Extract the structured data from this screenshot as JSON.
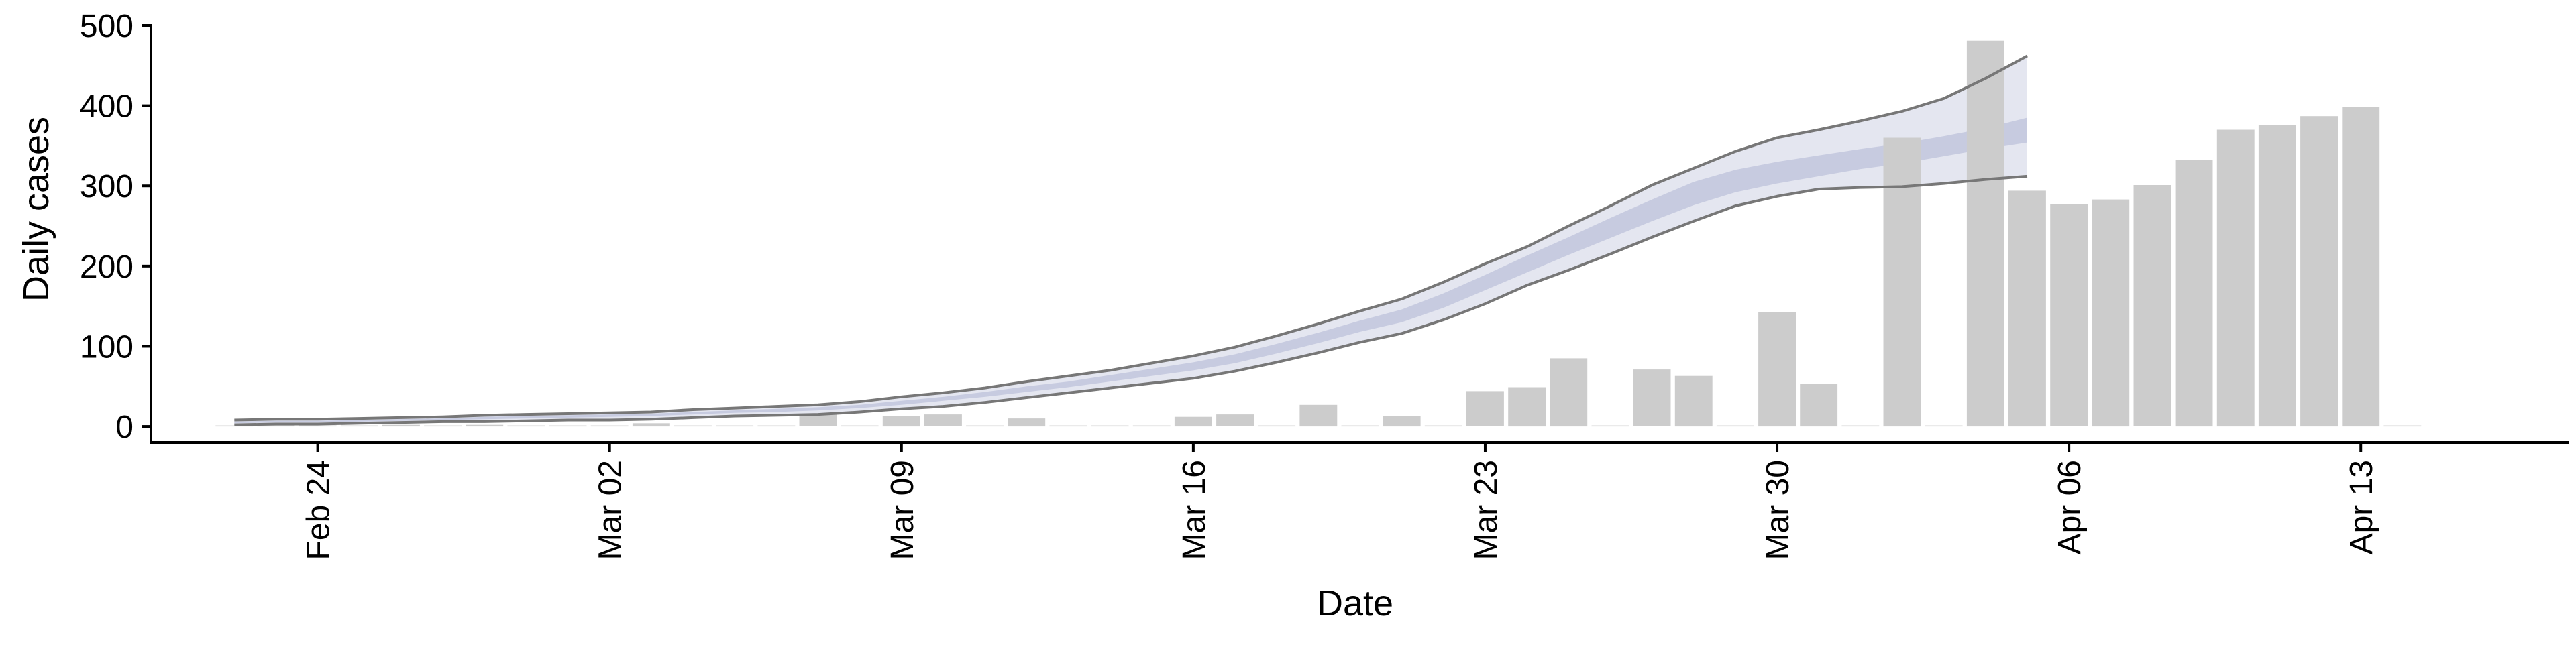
{
  "chart_data": {
    "type": "bar",
    "xlabel": "Date",
    "ylabel": "Daily cases",
    "ylim": [
      -20,
      500
    ],
    "yticks": [
      0,
      100,
      200,
      300,
      400,
      500
    ],
    "x_tick_labels": [
      {
        "date": "2020-02-24",
        "label": "Feb 24"
      },
      {
        "date": "2020-03-02",
        "label": "Mar 02"
      },
      {
        "date": "2020-03-09",
        "label": "Mar 09"
      },
      {
        "date": "2020-03-16",
        "label": "Mar 16"
      },
      {
        "date": "2020-03-23",
        "label": "Mar 23"
      },
      {
        "date": "2020-03-30",
        "label": "Mar 30"
      },
      {
        "date": "2020-04-06",
        "label": "Apr 06"
      },
      {
        "date": "2020-04-13",
        "label": "Apr 13"
      }
    ],
    "xlim": [
      "2020-02-20",
      "2020-04-18"
    ],
    "grid": false,
    "colors": {
      "bars": "#cccccc",
      "ribbon_outer": "#e4e6f0",
      "ribbon_inner": "#c7cbe0",
      "interval_line": "#777777"
    },
    "observed_cases": {
      "dates": [
        "2020-02-22",
        "2020-02-23",
        "2020-02-24",
        "2020-02-25",
        "2020-02-26",
        "2020-02-27",
        "2020-02-28",
        "2020-02-29",
        "2020-03-01",
        "2020-03-02",
        "2020-03-03",
        "2020-03-04",
        "2020-03-05",
        "2020-03-06",
        "2020-03-07",
        "2020-03-08",
        "2020-03-09",
        "2020-03-10",
        "2020-03-11",
        "2020-03-12",
        "2020-03-13",
        "2020-03-14",
        "2020-03-15",
        "2020-03-16",
        "2020-03-17",
        "2020-03-18",
        "2020-03-19",
        "2020-03-20",
        "2020-03-21",
        "2020-03-22",
        "2020-03-23",
        "2020-03-24",
        "2020-03-25",
        "2020-03-26",
        "2020-03-27",
        "2020-03-28",
        "2020-03-29",
        "2020-03-30",
        "2020-03-31",
        "2020-04-01",
        "2020-04-02",
        "2020-04-03",
        "2020-04-04",
        "2020-04-05",
        "2020-04-06",
        "2020-04-07",
        "2020-04-08",
        "2020-04-09",
        "2020-04-10",
        "2020-04-11",
        "2020-04-12",
        "2020-04-13",
        "2020-04-14"
      ],
      "values": [
        1,
        0,
        0,
        0,
        2,
        0,
        2,
        0,
        0,
        0,
        4,
        0,
        1,
        0,
        16,
        0,
        13,
        15,
        0,
        10,
        0,
        0,
        1,
        12,
        15,
        0,
        27,
        0,
        13,
        0,
        44,
        49,
        85,
        0,
        71,
        63,
        0,
        143,
        53,
        0,
        360,
        0,
        481,
        294,
        277,
        283,
        301,
        332,
        370,
        376,
        387,
        398,
        0
      ]
    },
    "estimate": {
      "dates": [
        "2020-02-22",
        "2020-02-23",
        "2020-02-24",
        "2020-02-25",
        "2020-02-26",
        "2020-02-27",
        "2020-02-28",
        "2020-02-29",
        "2020-03-01",
        "2020-03-02",
        "2020-03-03",
        "2020-03-04",
        "2020-03-05",
        "2020-03-06",
        "2020-03-07",
        "2020-03-08",
        "2020-03-09",
        "2020-03-10",
        "2020-03-11",
        "2020-03-12",
        "2020-03-13",
        "2020-03-14",
        "2020-03-15",
        "2020-03-16",
        "2020-03-17",
        "2020-03-18",
        "2020-03-19",
        "2020-03-20",
        "2020-03-21",
        "2020-03-22",
        "2020-03-23",
        "2020-03-24",
        "2020-03-25",
        "2020-03-26",
        "2020-03-27",
        "2020-03-28",
        "2020-03-29",
        "2020-03-30",
        "2020-03-31",
        "2020-04-01",
        "2020-04-02",
        "2020-04-03",
        "2020-04-04",
        "2020-04-05"
      ],
      "lower90": [
        2,
        3,
        3,
        4,
        5,
        6,
        6,
        7,
        8,
        8,
        9,
        11,
        13,
        14,
        15,
        18,
        22,
        25,
        30,
        36,
        42,
        48,
        54,
        60,
        69,
        80,
        92,
        105,
        116,
        133,
        153,
        176,
        195,
        215,
        236,
        256,
        275,
        287,
        296,
        298,
        299,
        303,
        308,
        312
      ],
      "lower50": [
        4,
        5,
        5,
        6,
        7,
        8,
        9,
        10,
        11,
        12,
        13,
        15,
        17,
        18,
        20,
        23,
        27,
        32,
        37,
        43,
        49,
        56,
        63,
        70,
        79,
        91,
        104,
        118,
        130,
        148,
        170,
        192,
        214,
        235,
        256,
        276,
        292,
        303,
        312,
        321,
        328,
        337,
        346,
        354
      ],
      "upper50": [
        6,
        7,
        7,
        8,
        9,
        10,
        12,
        13,
        14,
        15,
        16,
        18,
        20,
        22,
        24,
        27,
        32,
        37,
        43,
        50,
        56,
        64,
        72,
        80,
        90,
        103,
        117,
        132,
        146,
        166,
        189,
        213,
        236,
        260,
        283,
        305,
        320,
        330,
        338,
        346,
        353,
        362,
        372,
        385
      ],
      "upper90": [
        8,
        9,
        9,
        10,
        11,
        12,
        14,
        15,
        16,
        17,
        18,
        21,
        23,
        25,
        27,
        31,
        37,
        42,
        48,
        56,
        63,
        70,
        79,
        88,
        99,
        113,
        128,
        144,
        159,
        180,
        203,
        224,
        250,
        275,
        301,
        322,
        343,
        360,
        370,
        381,
        393,
        409,
        434,
        462
      ]
    }
  }
}
